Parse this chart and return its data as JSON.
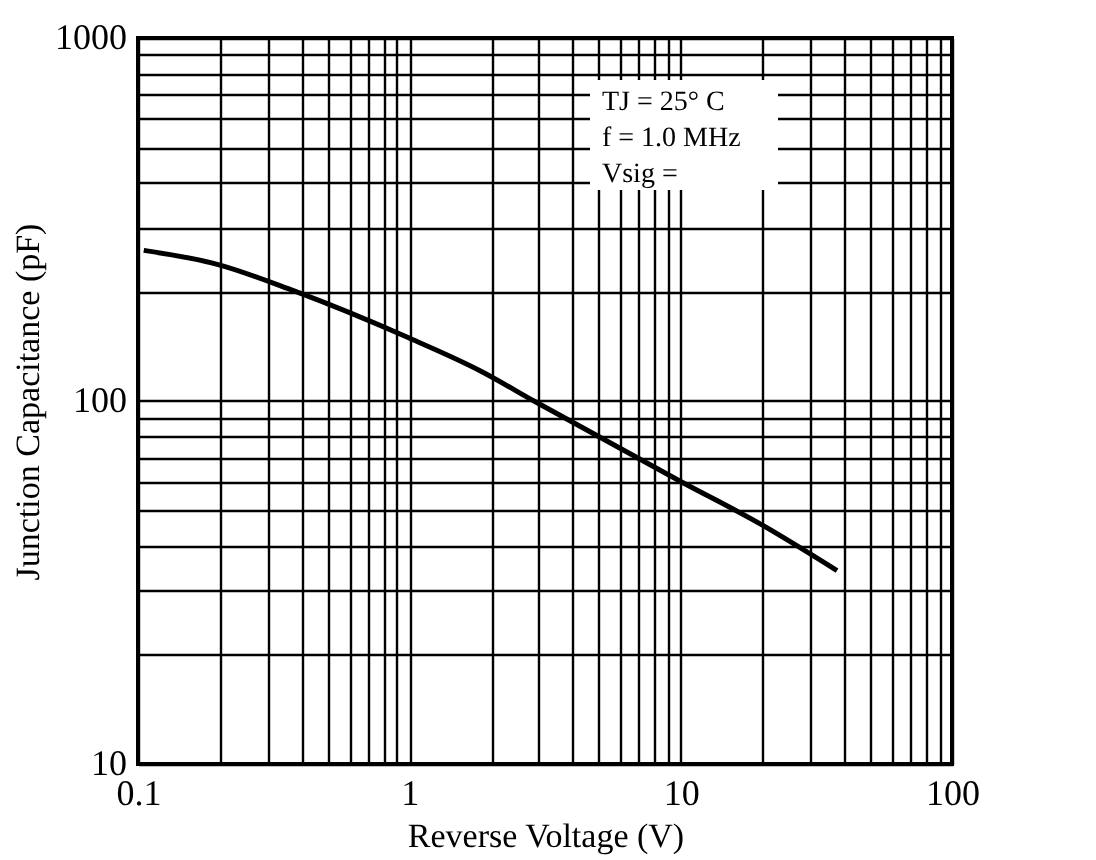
{
  "chart_data": {
    "type": "line",
    "xlabel": "Reverse Voltage (V)",
    "ylabel": "Junction Capacitance (pF)",
    "log": "xy",
    "grid": true,
    "line_style": "solid",
    "marker": "none",
    "xlim": [
      0.1,
      100
    ],
    "ylim": [
      10,
      1000
    ],
    "xticks": [
      0.1,
      {
        "value": 0.2,
        "label": null
      },
      {
        "value": 0.3,
        "label": null
      },
      {
        "value": 0.4,
        "label": null
      },
      {
        "value": 0.5,
        "label": null
      },
      {
        "value": 0.6,
        "label": null
      },
      {
        "value": 0.7,
        "label": null
      },
      {
        "value": 0.8,
        "label": null
      },
      {
        "value": 0.9,
        "label": null
      },
      1,
      {
        "value": 2,
        "label": null
      },
      {
        "value": 3,
        "label": null
      },
      {
        "value": 4,
        "label": null
      },
      {
        "value": 5,
        "label": null
      },
      {
        "value": 6,
        "label": null
      },
      {
        "value": 7,
        "label": null
      },
      {
        "value": 8,
        "label": null
      },
      {
        "value": 9,
        "label": null
      },
      10,
      {
        "value": 20,
        "label": null
      },
      {
        "value": 30,
        "label": null
      },
      {
        "value": 40,
        "label": null
      },
      {
        "value": 50,
        "label": null
      },
      {
        "value": 60,
        "label": null
      },
      {
        "value": 70,
        "label": null
      },
      {
        "value": 80,
        "label": null
      },
      {
        "value": 90,
        "label": null
      },
      100
    ],
    "yticks": [
      10,
      {
        "value": 20,
        "label": null
      },
      {
        "value": 30,
        "label": null
      },
      {
        "value": 40,
        "label": null
      },
      {
        "value": 50,
        "label": null
      },
      {
        "value": 60,
        "label": null
      },
      {
        "value": 70,
        "label": null
      },
      {
        "value": 80,
        "label": null
      },
      {
        "value": 90,
        "label": null
      },
      100,
      {
        "value": 200,
        "label": null
      },
      {
        "value": 300,
        "label": null
      },
      {
        "value": 400,
        "label": null
      },
      {
        "value": 500,
        "label": null
      },
      {
        "value": 600,
        "label": null
      },
      {
        "value": 700,
        "label": null
      },
      {
        "value": 800,
        "label": null
      },
      {
        "value": 900,
        "label": null
      },
      1000
    ],
    "annotations": [
      "TJ = 25°  C",
      "f = 1.0 MHz",
      "Vsig ="
    ],
    "series": [
      {
        "color": "#000000",
        "x": [
          0.105,
          0.196,
          0.376,
          0.98,
          1.83,
          2.88,
          10,
          19.7,
          37.7
        ],
        "values": [
          260,
          238,
          201,
          150,
          121,
          100,
          60,
          45.8,
          34.1
        ]
      }
    ]
  }
}
